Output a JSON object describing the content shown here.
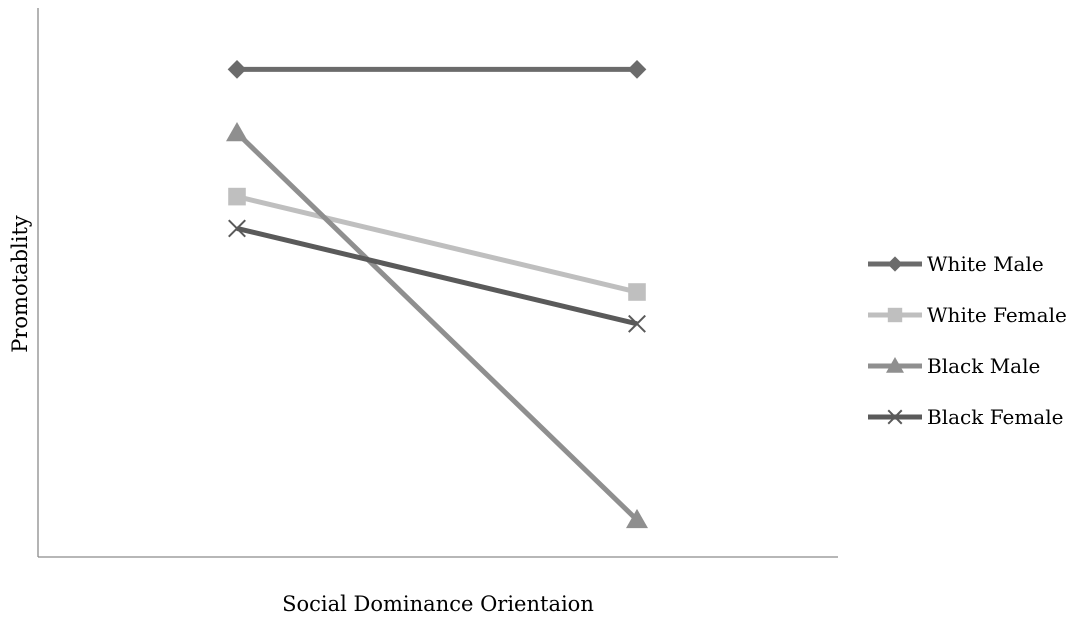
{
  "chart_data": {
    "type": "line",
    "title": "",
    "xlabel": "Social Dominance Orientaion",
    "ylabel": "Promotablity",
    "categories": [
      "",
      ""
    ],
    "ylim": [
      0,
      100
    ],
    "grid": false,
    "legend": "right",
    "series": [
      {
        "name": "White Male",
        "values": [
          92,
          92
        ],
        "color": "#6b6b6b",
        "marker": "diamond"
      },
      {
        "name": "White Female",
        "values": [
          68,
          50
        ],
        "color": "#bfbfbf",
        "marker": "square"
      },
      {
        "name": "Black Male",
        "values": [
          80,
          7
        ],
        "color": "#8f8f8f",
        "marker": "triangle"
      },
      {
        "name": "Black Female",
        "values": [
          62,
          44
        ],
        "color": "#5a5a5a",
        "marker": "x"
      }
    ]
  }
}
